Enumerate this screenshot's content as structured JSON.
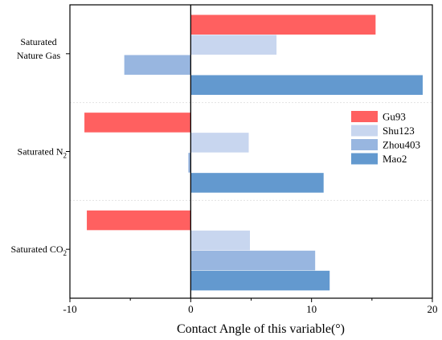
{
  "chart_data": {
    "type": "bar",
    "orientation": "horizontal",
    "xlabel": "Contact Angle of this variable(°)",
    "xlim": [
      -10,
      20
    ],
    "xticks": [
      -10,
      0,
      10,
      20
    ],
    "categories": [
      {
        "lines": [
          "Saturated",
          "Nature Gas"
        ]
      },
      {
        "lines": [
          "Saturated N"
        ],
        "sub": "2"
      },
      {
        "lines": [
          "Saturated CO"
        ],
        "sub": "2"
      }
    ],
    "series": [
      {
        "name": "Gu93",
        "color": "#ff6060",
        "values": [
          15.3,
          -8.8,
          -8.6
        ]
      },
      {
        "name": "Shu123",
        "color": "#c8d6ef",
        "values": [
          7.1,
          4.8,
          4.9
        ]
      },
      {
        "name": "Zhou403",
        "color": "#98b6e0",
        "values": [
          -5.5,
          -0.2,
          10.3
        ]
      },
      {
        "name": "Mao2",
        "color": "#6399cf",
        "values": [
          19.2,
          11.0,
          11.5
        ]
      }
    ],
    "legend": "right",
    "grid": false
  }
}
